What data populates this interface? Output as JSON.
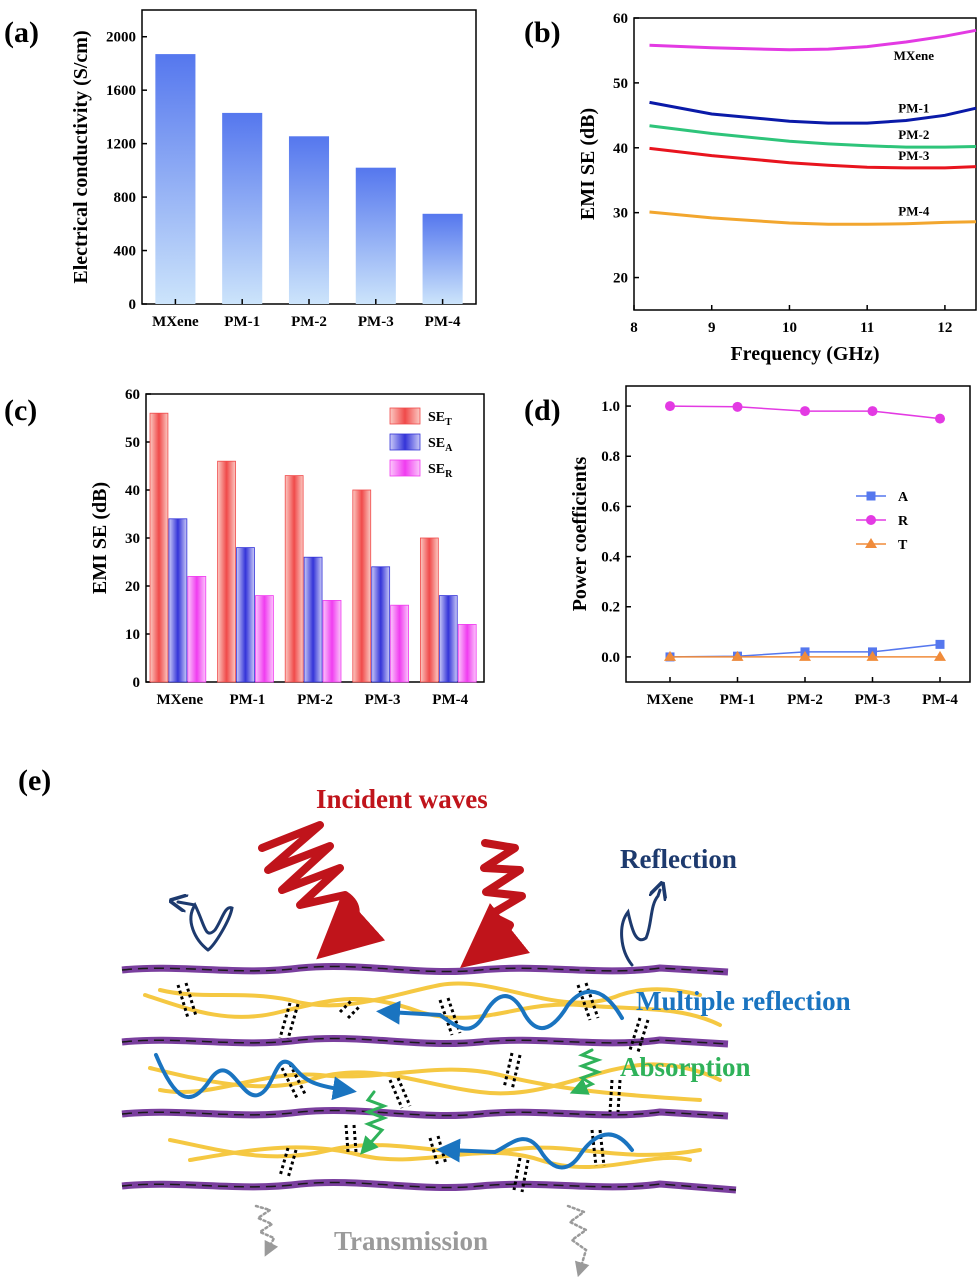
{
  "panels": {
    "a": "(a)",
    "b": "(b)",
    "c": "(c)",
    "d": "(d)",
    "e": "(e)"
  },
  "chart_data": [
    {
      "id": "a",
      "type": "bar",
      "categories": [
        "MXene",
        "PM-1",
        "PM-2",
        "PM-3",
        "PM-4"
      ],
      "values": [
        1870,
        1430,
        1255,
        1020,
        675
      ],
      "ylabel": "Electrical conductivity (S/cm)",
      "xlabel": "",
      "ylim": [
        0,
        2200
      ],
      "yticks": [
        0,
        400,
        800,
        1200,
        1600,
        2000
      ],
      "bar_color_top": "#5577ee",
      "bar_color_bottom": "#cce4fb"
    },
    {
      "id": "b",
      "type": "line",
      "xlabel": "Frequency (GHz)",
      "ylabel": "EMI SE (dB)",
      "xlim": [
        8,
        12.4
      ],
      "ylim": [
        15,
        60
      ],
      "xticks": [
        8,
        9,
        10,
        11,
        12
      ],
      "yticks": [
        20,
        30,
        40,
        50,
        60
      ],
      "series": [
        {
          "name": "MXene",
          "color": "#e33ae3",
          "x": [
            8.2,
            9,
            10,
            10.5,
            11,
            11.5,
            12,
            12.4
          ],
          "y": [
            55.8,
            55.4,
            55.1,
            55.2,
            55.6,
            56.3,
            57.2,
            58.1
          ]
        },
        {
          "name": "PM-1",
          "color": "#0a1aa8",
          "x": [
            8.2,
            9,
            10,
            10.5,
            11,
            11.5,
            12,
            12.4
          ],
          "y": [
            47.0,
            45.2,
            44.1,
            43.8,
            43.8,
            44.2,
            45.0,
            46.1
          ]
        },
        {
          "name": "PM-2",
          "color": "#2ec47a",
          "x": [
            8.2,
            9,
            10,
            10.5,
            11,
            11.5,
            12,
            12.4
          ],
          "y": [
            43.4,
            42.2,
            41.0,
            40.6,
            40.3,
            40.1,
            40.1,
            40.2
          ]
        },
        {
          "name": "PM-3",
          "color": "#e8141e",
          "x": [
            8.2,
            9,
            10,
            10.5,
            11,
            11.5,
            12,
            12.4
          ],
          "y": [
            39.9,
            38.8,
            37.7,
            37.3,
            37.0,
            36.9,
            36.9,
            37.1
          ]
        },
        {
          "name": "PM-4",
          "color": "#f2a62e",
          "x": [
            8.2,
            9,
            10,
            10.5,
            11,
            11.5,
            12,
            12.4
          ],
          "y": [
            30.1,
            29.2,
            28.4,
            28.2,
            28.2,
            28.3,
            28.5,
            28.6
          ]
        }
      ]
    },
    {
      "id": "c",
      "type": "bar",
      "categories": [
        "MXene",
        "PM-1",
        "PM-2",
        "PM-3",
        "PM-4"
      ],
      "ylabel": "EMI SE (dB)",
      "xlabel": "",
      "ylim": [
        0,
        60
      ],
      "yticks": [
        0,
        10,
        20,
        30,
        40,
        50,
        60
      ],
      "legend_position": "top-right",
      "series": [
        {
          "name": "SE",
          "sub": "T",
          "color": "#f04a4a",
          "light": "#fbc9c2",
          "values": [
            56,
            46,
            43,
            40,
            30
          ]
        },
        {
          "name": "SE",
          "sub": "A",
          "color": "#3434d8",
          "light": "#c9c9f7",
          "values": [
            34,
            28,
            26,
            24,
            18
          ]
        },
        {
          "name": "SE",
          "sub": "R",
          "color": "#f03cf0",
          "light": "#fbc6fb",
          "values": [
            22,
            18,
            17,
            16,
            12
          ]
        }
      ]
    },
    {
      "id": "d",
      "type": "line",
      "categories": [
        "MXene",
        "PM-1",
        "PM-2",
        "PM-3",
        "PM-4"
      ],
      "ylabel": "Power coefficients",
      "xlabel": "",
      "ylim": [
        -0.1,
        1.08
      ],
      "yticks": [
        0.0,
        0.2,
        0.4,
        0.6,
        0.8,
        1.0
      ],
      "legend_position": "center-right",
      "series": [
        {
          "name": "A",
          "color": "#5577ee",
          "marker": "square",
          "values": [
            0.0,
            0.003,
            0.02,
            0.02,
            0.05
          ]
        },
        {
          "name": "R",
          "color": "#e33ae3",
          "marker": "circle",
          "values": [
            1.0,
            0.997,
            0.98,
            0.98,
            0.95
          ]
        },
        {
          "name": "T",
          "color": "#f08b3a",
          "marker": "triangle",
          "values": [
            0.0,
            0.0,
            0.0,
            0.0,
            0.0
          ]
        }
      ]
    }
  ],
  "schematic": {
    "incident": "Incident waves",
    "reflection": "Reflection",
    "multiple": "Multiple reflection",
    "absorption": "Absorption",
    "transmission": "Transmission",
    "colors": {
      "incident": "#c0141b",
      "reflection": "#1d3a6e",
      "multiple": "#1a74c0",
      "absorption": "#2fb25a",
      "transmission": "#9a9a9a",
      "fiber": "#f5c842",
      "sheet": "#7a3f9e"
    }
  }
}
